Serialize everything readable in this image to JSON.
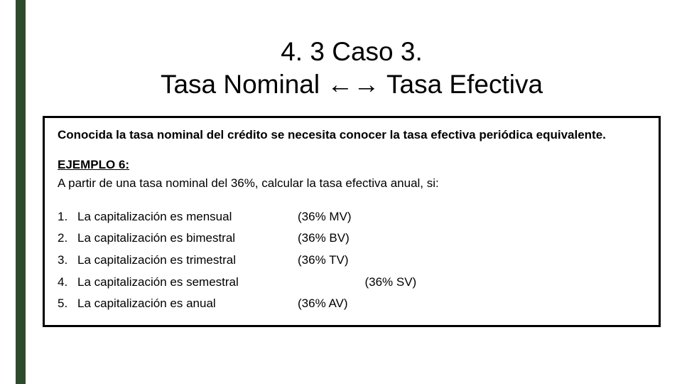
{
  "colors": {
    "accent": "#2e4a2d",
    "background": "#ffffff",
    "text": "#000000",
    "border": "#000000"
  },
  "title_line1": "4. 3  Caso 3.",
  "title_line2": "Tasa Nominal ←→ Tasa Efectiva",
  "intro": "Conocida la tasa nominal del crédito se necesita conocer la tasa efectiva periódica equivalente.",
  "example_label": "EJEMPLO  6:",
  "example_text": "A partir de una tasa nominal del 36%, calcular la tasa efectiva anual, si:",
  "items": [
    {
      "n": "1.",
      "desc": "La capitalización es mensual",
      "code": "(36% MV)"
    },
    {
      "n": "2.",
      "desc": "La capitalización es bimestral",
      "code": "(36% BV)"
    },
    {
      "n": "3.",
      "desc": "La capitalización es trimestral",
      "code": "(36% TV)"
    },
    {
      "n": "4.",
      "desc": "La capitalización es semestral",
      "code": "                    (36% SV)"
    },
    {
      "n": "5.",
      "desc": "La capitalización es anual",
      "code": "(36% AV)"
    }
  ]
}
